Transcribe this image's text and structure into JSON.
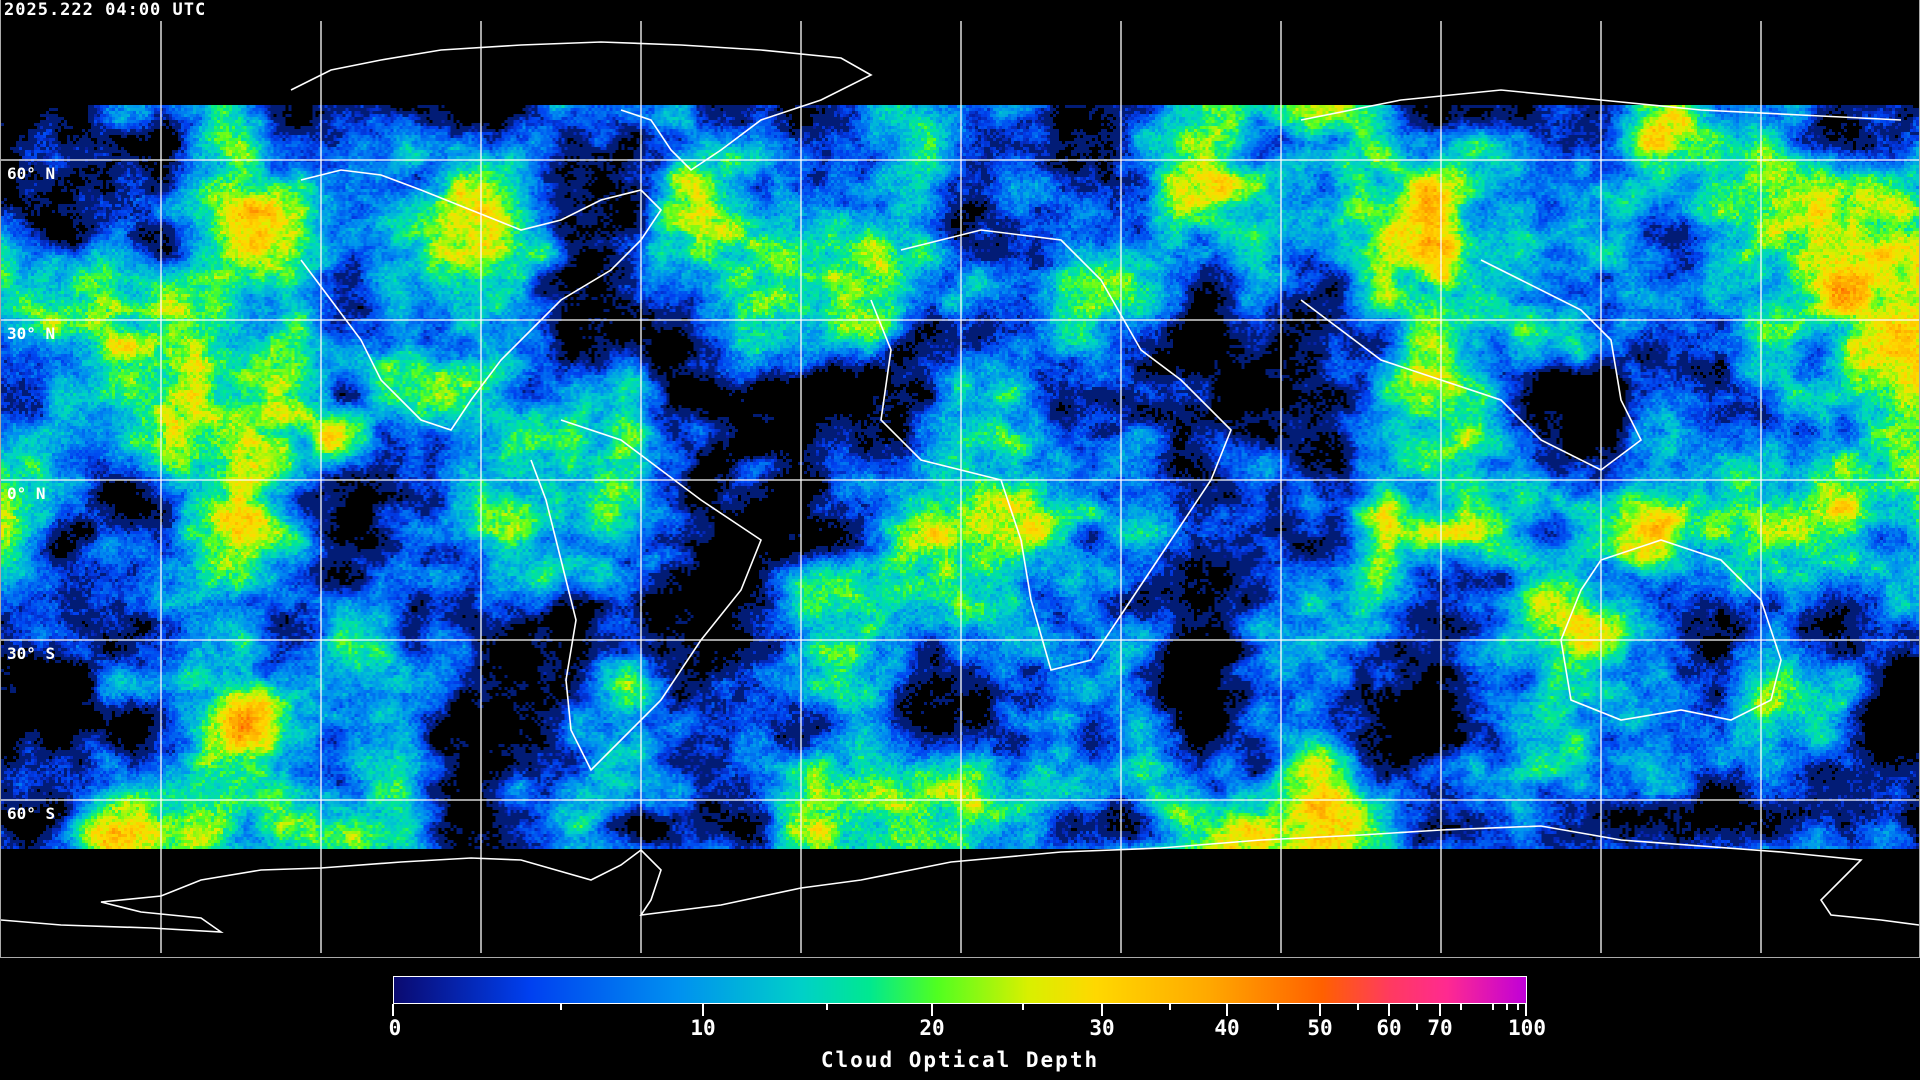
{
  "header": {
    "timestamp": "2025.222 04:00 UTC"
  },
  "map": {
    "projection": "equirectangular",
    "latitude_labels": [
      "60° N",
      "30° N",
      "0° N",
      "30° S",
      "60° S"
    ],
    "grid_color": "#ffffff",
    "coastline_color": "#ffffff",
    "frame_color": "#aaaaaa"
  },
  "colorbar": {
    "title": "Cloud Optical Depth",
    "min": 0,
    "max": 100,
    "tick_labels": [
      "0",
      "10",
      "20",
      "30",
      "40",
      "50",
      "60",
      "70",
      "100"
    ],
    "colors": [
      "#0a0a70",
      "#0040f0",
      "#0090f0",
      "#00d0c8",
      "#00e890",
      "#50ff20",
      "#d8f000",
      "#ffd800",
      "#ffa800",
      "#ff6000",
      "#ff3a60",
      "#ff2a90",
      "#c000d8"
    ]
  }
}
